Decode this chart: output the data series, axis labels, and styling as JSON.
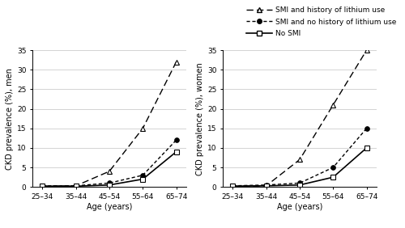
{
  "age_labels": [
    "25–34",
    "35–44",
    "45–54",
    "55–64",
    "65–74"
  ],
  "age_x": [
    0,
    1,
    2,
    3,
    4
  ],
  "men": {
    "lithium": [
      0.2,
      0.3,
      4,
      15,
      32
    ],
    "no_lithium": [
      0.3,
      0.3,
      1,
      3,
      12
    ],
    "no_smi": [
      0.2,
      0.2,
      0.5,
      2,
      9
    ]
  },
  "women": {
    "lithium": [
      0.2,
      0.3,
      7,
      21,
      35
    ],
    "no_lithium": [
      0.3,
      0.5,
      1,
      5,
      15
    ],
    "no_smi": [
      0.2,
      0.3,
      0.5,
      2.5,
      10
    ]
  },
  "ylim": [
    0,
    35
  ],
  "yticks": [
    0,
    5,
    10,
    15,
    20,
    25,
    30,
    35
  ],
  "ylabel_men": "CKD prevalence (%), men",
  "ylabel_women": "CKD prevalence (%), women",
  "xlabel": "Age (years)",
  "legend_labels": [
    "SMI and history of lithium use",
    "SMI and no history of lithium use",
    "No SMI"
  ],
  "background_color": "#ffffff",
  "line_color": "#000000"
}
